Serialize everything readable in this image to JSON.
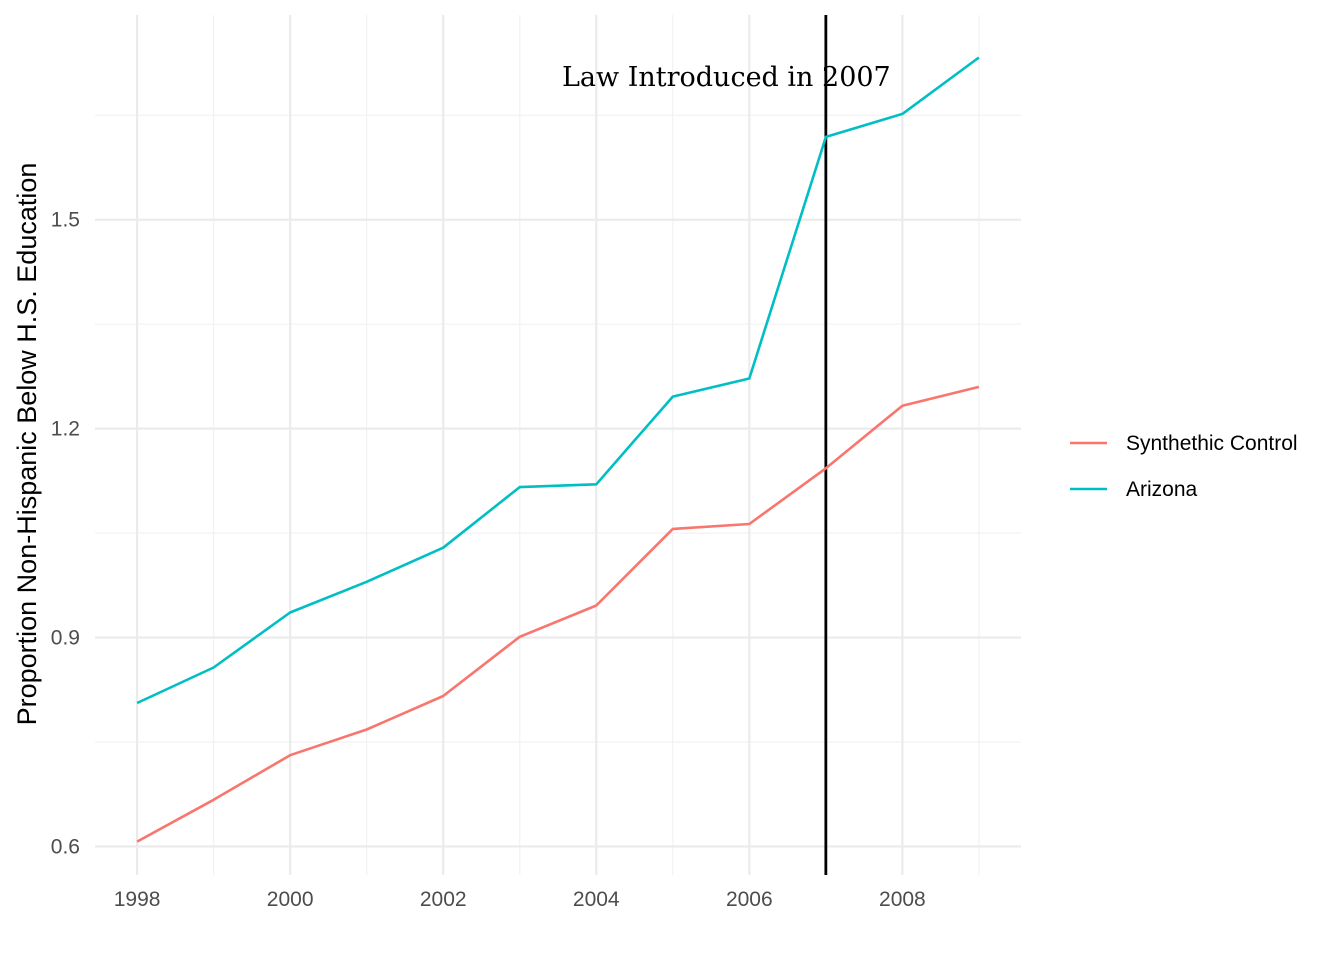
{
  "chart_data": {
    "type": "line",
    "title": "",
    "xlabel": "",
    "ylabel": "Proportion Non-Hispanic Below H.S. Education",
    "x": [
      1998,
      1999,
      2000,
      2001,
      2002,
      2003,
      2004,
      2005,
      2006,
      2007,
      2008,
      2009
    ],
    "xlim": [
      1997.45,
      2009.55
    ],
    "ylim": [
      0.559,
      1.794
    ],
    "x_ticks": [
      1998,
      2000,
      2002,
      2004,
      2006,
      2008
    ],
    "x_tick_labels": [
      "1998",
      "2000",
      "2002",
      "2004",
      "2006",
      "2008"
    ],
    "y_ticks": [
      0.6,
      0.9,
      1.2,
      1.5
    ],
    "y_tick_labels": [
      "0.6",
      "0.9",
      "1.2",
      "1.5"
    ],
    "grid": true,
    "legend_position": "right",
    "series": [
      {
        "name": "Synthethic Control",
        "color": "#F8766D",
        "values": [
          0.607,
          0.667,
          0.731,
          0.768,
          0.816,
          0.901,
          0.946,
          1.056,
          1.063,
          1.143,
          1.233,
          1.26
        ]
      },
      {
        "name": "Arizona",
        "color": "#00BFC4",
        "values": [
          0.806,
          0.857,
          0.936,
          0.98,
          1.029,
          1.116,
          1.12,
          1.246,
          1.272,
          1.619,
          1.652,
          1.733
        ]
      }
    ],
    "vline": {
      "x": 2007,
      "color": "#000000"
    },
    "annotation": {
      "text": "Law Introduced in 2007",
      "x": 2005.7,
      "y": 1.705
    }
  }
}
